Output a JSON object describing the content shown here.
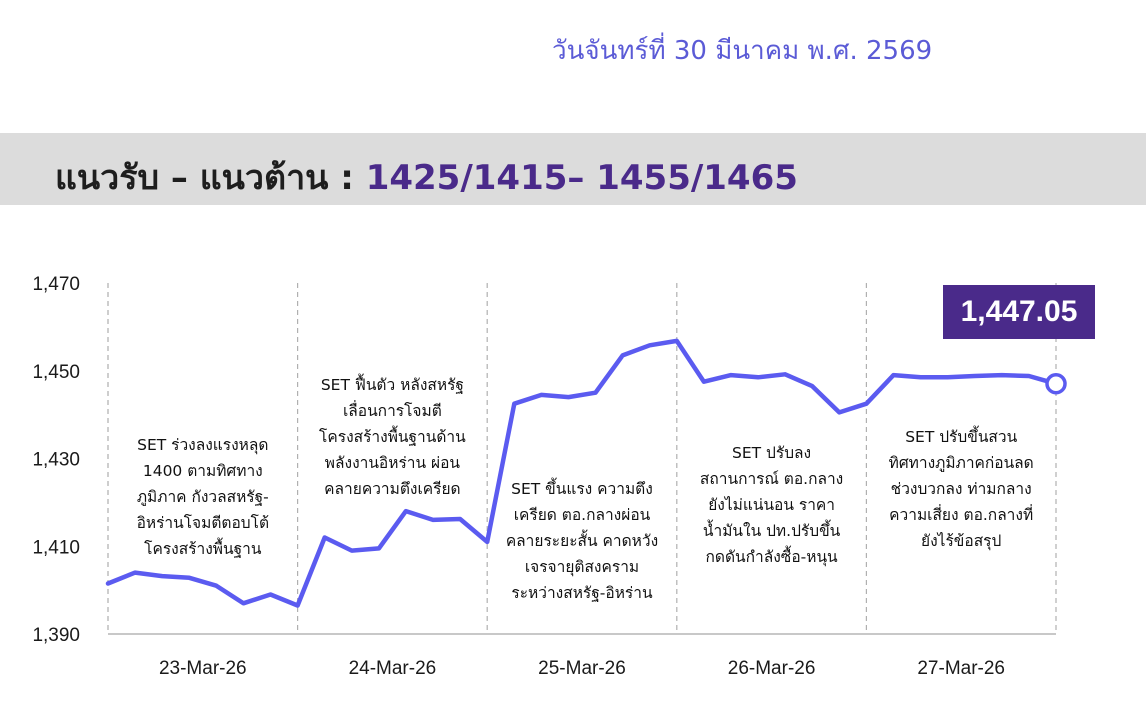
{
  "date_text": "วันจันทร์ที่ 30 มีนาคม พ.ศ. 2569",
  "banner": {
    "label": "แนวรับ – แนวต้าน : ",
    "levels": "1425/1415– 1455/1465"
  },
  "colors": {
    "line": "#5b5bf0",
    "banner_bg": "#dcdcdc",
    "accent": "#4a2a8a",
    "date_text": "#5b5bd6"
  },
  "chart_data": {
    "type": "line",
    "title": "",
    "xlabel": "",
    "ylabel": "",
    "ylim": [
      1390,
      1470
    ],
    "yticks": [
      1390,
      1410,
      1430,
      1450,
      1470
    ],
    "ytick_labels": [
      "1,390",
      "1,410",
      "1,430",
      "1,450",
      "1,470"
    ],
    "days": [
      "23-Mar-26",
      "24-Mar-26",
      "25-Mar-26",
      "26-Mar-26",
      "27-Mar-26"
    ],
    "grid": "vertical dashed day separators",
    "legend": "none",
    "series": [
      {
        "values": [
          1401.5,
          1404.0,
          1403.2,
          1402.8,
          1401.0,
          1397.0,
          1399.0,
          1396.5,
          1412.0,
          1409.0,
          1409.5,
          1418.0,
          1416.0,
          1416.2,
          1411.0,
          1442.5,
          1444.5,
          1444.0,
          1445.0,
          1453.5,
          1455.8,
          1456.8,
          1447.5,
          1449.0,
          1448.5,
          1449.2,
          1446.5,
          1440.5,
          1442.5,
          1449.0,
          1448.5,
          1448.5,
          1448.8,
          1449.0,
          1448.8,
          1447.05
        ]
      }
    ],
    "last_value_label": "1,447.05",
    "annotations": [
      "SET ร่วงลงแรงหลุด\n1400 ตามทิศทาง\nภูมิภาค กังวลสหรัฐ-\nอิหร่านโจมตีตอบโต้\nโครงสร้างพื้นฐาน",
      "SET ฟื้นตัว หลังสหรัฐ\nเลื่อนการโจมตี\nโครงสร้างพื้นฐานด้าน\nพลังงานอิหร่าน ผ่อน\nคลายความตึงเครียด",
      "SET ขึ้นแรง ความตึง\nเครียด ตอ.กลางผ่อน\nคลายระยะสั้น คาดหวัง\nเจรจายุติสงคราม\nระหว่างสหรัฐ-อิหร่าน",
      "SET ปรับลง\nสถานการณ์ ตอ.กลาง\nยังไม่แน่นอน ราคา\nน้ำมันใน ปท.ปรับขึ้น\nกดดันกำลังซื้อ-หนุน",
      "SET ปรับขึ้นสวน\nทิศทางภูมิภาคก่อนลด\nช่วงบวกลง ท่ามกลาง\nความเสี่ยง ตอ.กลางที่\nยังไร้ข้อสรุป"
    ]
  }
}
